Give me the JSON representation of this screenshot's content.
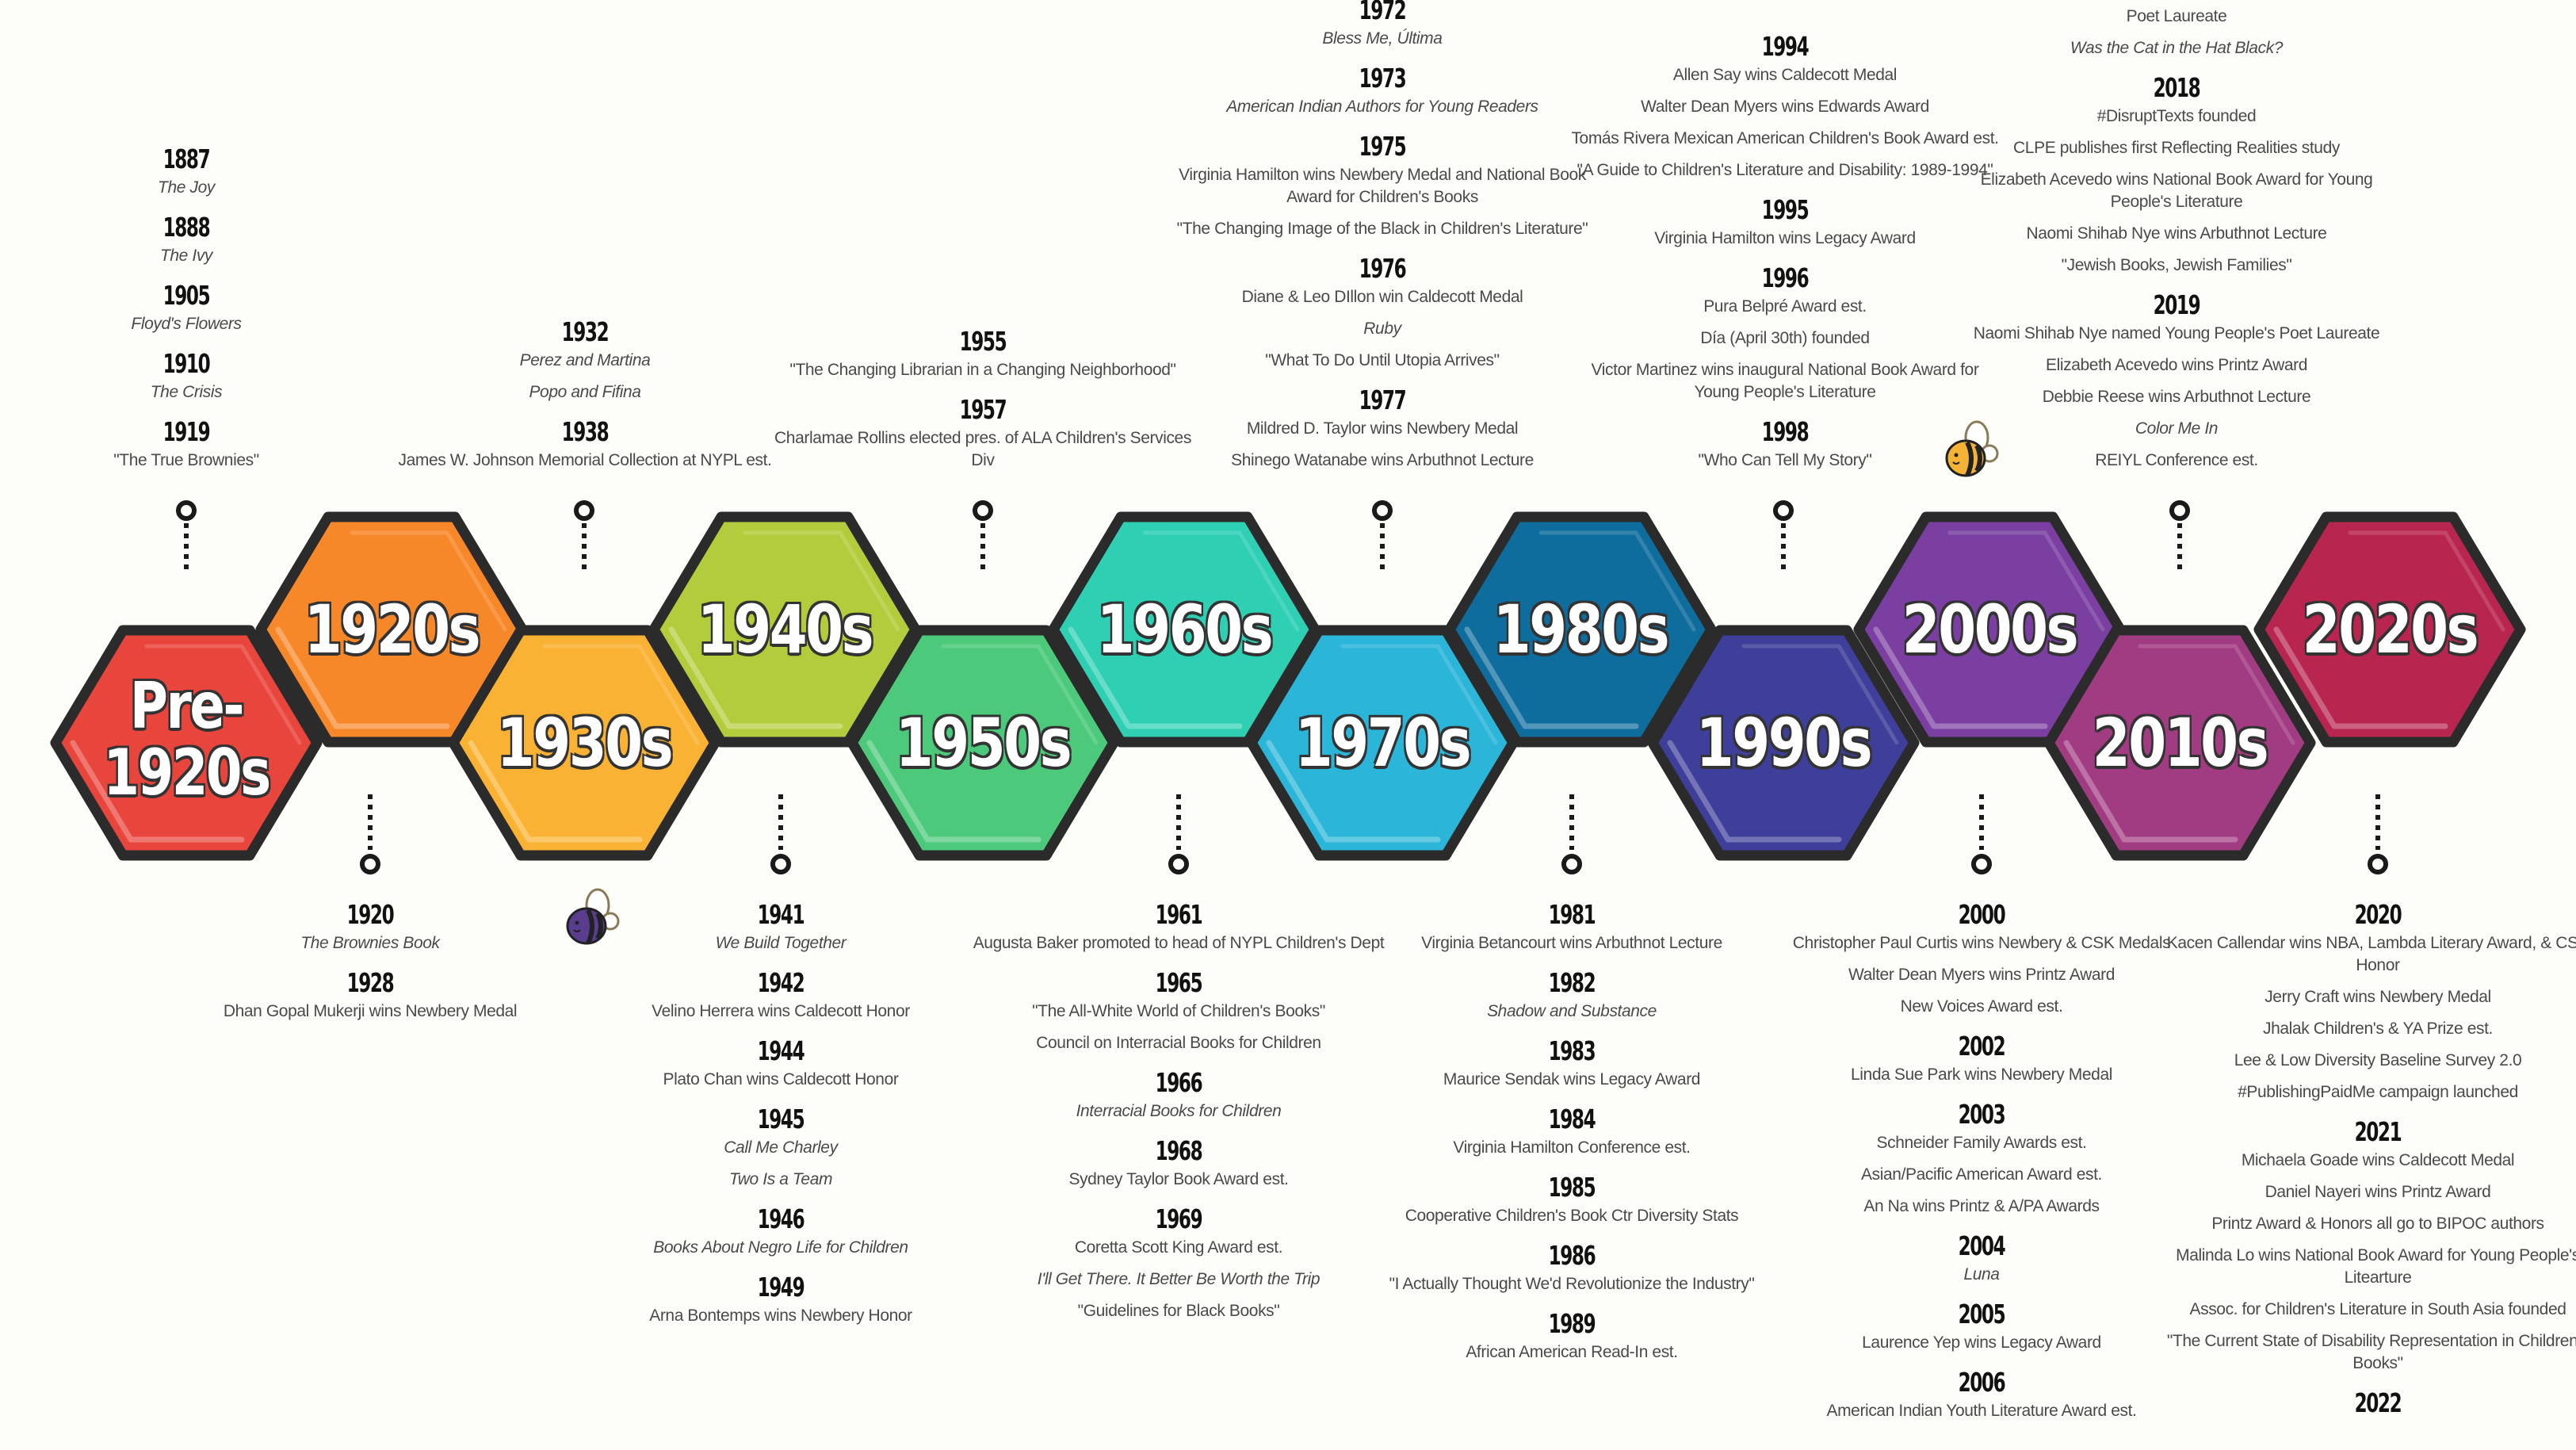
{
  "colors": {
    "background": "#fdfdfa",
    "outline": "#2b2b2b"
  },
  "decades": [
    {
      "label": "Pre-1920s",
      "color": "#e8453c",
      "row": "low"
    },
    {
      "label": "1920s",
      "color": "#f7882a",
      "row": "high"
    },
    {
      "label": "1930s",
      "color": "#f9b233",
      "row": "low"
    },
    {
      "label": "1940s",
      "color": "#b3cc3c",
      "row": "high"
    },
    {
      "label": "1950s",
      "color": "#4cc97a",
      "row": "low"
    },
    {
      "label": "1960s",
      "color": "#2ecfb3",
      "row": "high"
    },
    {
      "label": "1970s",
      "color": "#2bb5d8",
      "row": "low"
    },
    {
      "label": "1980s",
      "color": "#0f6d9e",
      "row": "high"
    },
    {
      "label": "1990s",
      "color": "#3e3f9a",
      "row": "low"
    },
    {
      "label": "2000s",
      "color": "#7a3fa0",
      "row": "high"
    },
    {
      "label": "2010s",
      "color": "#a23c82",
      "row": "low"
    },
    {
      "label": "2020s",
      "color": "#b8264f",
      "row": "high"
    }
  ],
  "top_columns": [
    {
      "decade": "Pre-1920s",
      "groups": [
        {
          "year": "1887",
          "items": [
            {
              "text": "The Joy",
              "italic": true
            }
          ]
        },
        {
          "year": "1888",
          "items": [
            {
              "text": "The Ivy",
              "italic": true
            }
          ]
        },
        {
          "year": "1905",
          "items": [
            {
              "text": "Floyd's Flowers",
              "italic": true
            }
          ]
        },
        {
          "year": "1910",
          "items": [
            {
              "text": "The Crisis",
              "italic": true
            }
          ]
        },
        {
          "year": "1919",
          "items": [
            {
              "text": "\"The True Brownies\"",
              "italic": false
            }
          ]
        }
      ]
    },
    {
      "decade": "1930s",
      "groups": [
        {
          "year": "1932",
          "items": [
            {
              "text": "Perez and Martina",
              "italic": true
            },
            {
              "text": "Popo and Fifina",
              "italic": true
            }
          ]
        },
        {
          "year": "1938",
          "items": [
            {
              "text": "James W. Johnson Memorial Collection at NYPL est.",
              "italic": false
            }
          ]
        }
      ]
    },
    {
      "decade": "1950s",
      "groups": [
        {
          "year": "1955",
          "items": [
            {
              "text": "\"The Changing Librarian in a Changing Neighborhood\"",
              "italic": false
            }
          ]
        },
        {
          "year": "1957",
          "items": [
            {
              "text": "Charlamae Rollins elected pres. of ALA Children's Services Div",
              "italic": false
            }
          ]
        }
      ]
    },
    {
      "decade": "1970s",
      "groups": [
        {
          "year": "1972",
          "items": [
            {
              "text": "Bless Me, Última",
              "italic": true
            }
          ]
        },
        {
          "year": "1973",
          "items": [
            {
              "text": "American Indian Authors for Young Readers",
              "italic": true
            }
          ]
        },
        {
          "year": "1975",
          "items": [
            {
              "text": "Virginia Hamilton wins Newbery Medal and National Book Award for Children's Books",
              "italic": false
            },
            {
              "text": "\"The Changing Image of the Black in Children's Literature\"",
              "italic": false
            }
          ]
        },
        {
          "year": "1976",
          "items": [
            {
              "text": "Diane & Leo DIllon win Caldecott Medal",
              "italic": false
            },
            {
              "text": "Ruby",
              "italic": true
            },
            {
              "text": "\"What To Do Until Utopia Arrives\"",
              "italic": false
            }
          ]
        },
        {
          "year": "1977",
          "items": [
            {
              "text": "Mildred D. Taylor wins Newbery Medal",
              "italic": false
            },
            {
              "text": "Shinego Watanabe wins Arbuthnot Lecture",
              "italic": false
            }
          ]
        }
      ]
    },
    {
      "decade": "1990s",
      "groups": [
        {
          "year": "1994",
          "items": [
            {
              "text": "Allen Say wins Caldecott Medal",
              "italic": false
            },
            {
              "text": "Walter Dean Myers wins Edwards Award",
              "italic": false
            },
            {
              "text": "Tomás Rivera Mexican American Children's Book Award est.",
              "italic": false
            },
            {
              "text": "\"A Guide to Children's Literature and Disability: 1989-1994\"",
              "italic": false
            }
          ]
        },
        {
          "year": "1995",
          "items": [
            {
              "text": "Virginia Hamilton wins Legacy Award",
              "italic": false
            }
          ]
        },
        {
          "year": "1996",
          "items": [
            {
              "text": "Pura Belpré Award est.",
              "italic": false
            },
            {
              "text": "Día (April 30th) founded",
              "italic": false
            },
            {
              "text": "Victor Martinez wins inaugural National Book Award for Young People's Literature",
              "italic": false
            }
          ]
        },
        {
          "year": "1998",
          "items": [
            {
              "text": "\"Who Can Tell My Story\"",
              "italic": false
            }
          ]
        }
      ]
    },
    {
      "decade": "2010s",
      "groups": [
        {
          "year": null,
          "items": [
            {
              "text": "Poet Laureate",
              "italic": false
            },
            {
              "text": "Was the Cat in the Hat Black?",
              "italic": true
            }
          ]
        },
        {
          "year": "2018",
          "items": [
            {
              "text": "#DisruptTexts founded",
              "italic": false
            },
            {
              "text": "CLPE publishes first Reflecting Realities study",
              "italic": false
            },
            {
              "text": "Elizabeth Acevedo wins National Book Award for Young People's Literature",
              "italic": false
            },
            {
              "text": "Naomi Shihab Nye wins Arbuthnot Lecture",
              "italic": false
            },
            {
              "text": "\"Jewish Books, Jewish Families\"",
              "italic": false
            }
          ]
        },
        {
          "year": "2019",
          "items": [
            {
              "text": "Naomi Shihab Nye named Young People's Poet Laureate",
              "italic": false
            },
            {
              "text": "Elizabeth Acevedo wins Printz Award",
              "italic": false
            },
            {
              "text": "Debbie Reese wins Arbuthnot Lecture",
              "italic": false
            },
            {
              "text": "Color Me In",
              "italic": true
            },
            {
              "text": "REIYL Conference est.",
              "italic": false
            }
          ]
        }
      ]
    }
  ],
  "bottom_columns": [
    {
      "decade": "1920s",
      "groups": [
        {
          "year": "1920",
          "items": [
            {
              "text": "The Brownies Book",
              "italic": true
            }
          ]
        },
        {
          "year": "1928",
          "items": [
            {
              "text": "Dhan Gopal Mukerji wins Newbery Medal",
              "italic": false
            }
          ]
        }
      ]
    },
    {
      "decade": "1940s",
      "groups": [
        {
          "year": "1941",
          "items": [
            {
              "text": "We Build Together",
              "italic": true
            }
          ]
        },
        {
          "year": "1942",
          "items": [
            {
              "text": "Velino Herrera wins Caldecott Honor",
              "italic": false
            }
          ]
        },
        {
          "year": "1944",
          "items": [
            {
              "text": "Plato Chan wins Caldecott Honor",
              "italic": false
            }
          ]
        },
        {
          "year": "1945",
          "items": [
            {
              "text": "Call Me Charley",
              "italic": true
            },
            {
              "text": "Two Is a Team",
              "italic": true
            }
          ]
        },
        {
          "year": "1946",
          "items": [
            {
              "text": "Books About Negro Life for Children",
              "italic": true
            }
          ]
        },
        {
          "year": "1949",
          "items": [
            {
              "text": "Arna Bontemps wins Newbery Honor",
              "italic": false
            }
          ]
        }
      ]
    },
    {
      "decade": "1960s",
      "groups": [
        {
          "year": "1961",
          "items": [
            {
              "text": "Augusta Baker promoted to head of NYPL Children's Dept",
              "italic": false
            }
          ]
        },
        {
          "year": "1965",
          "items": [
            {
              "text": "\"The All-White World of Children's Books\"",
              "italic": false
            },
            {
              "text": "Council on Interracial Books for Children",
              "italic": false
            }
          ]
        },
        {
          "year": "1966",
          "items": [
            {
              "text": "Interracial Books for Children",
              "italic": true
            }
          ]
        },
        {
          "year": "1968",
          "items": [
            {
              "text": "Sydney Taylor Book Award est.",
              "italic": false
            }
          ]
        },
        {
          "year": "1969",
          "items": [
            {
              "text": "Coretta Scott King Award est.",
              "italic": false
            },
            {
              "text": "I'll Get There. It Better Be Worth the Trip",
              "italic": true
            },
            {
              "text": "\"Guidelines for Black Books\"",
              "italic": false
            }
          ]
        }
      ]
    },
    {
      "decade": "1980s",
      "groups": [
        {
          "year": "1981",
          "items": [
            {
              "text": "Virginia Betancourt wins Arbuthnot Lecture",
              "italic": false
            }
          ]
        },
        {
          "year": "1982",
          "items": [
            {
              "text": "Shadow and Substance",
              "italic": true
            }
          ]
        },
        {
          "year": "1983",
          "items": [
            {
              "text": "Maurice Sendak wins Legacy Award",
              "italic": false
            }
          ]
        },
        {
          "year": "1984",
          "items": [
            {
              "text": "Virginia Hamilton Conference est.",
              "italic": false
            }
          ]
        },
        {
          "year": "1985",
          "items": [
            {
              "text": "Cooperative Children's Book Ctr Diversity Stats",
              "italic": false
            }
          ]
        },
        {
          "year": "1986",
          "items": [
            {
              "text": "\"I Actually Thought We'd Revolutionize the Industry\"",
              "italic": false
            }
          ]
        },
        {
          "year": "1989",
          "items": [
            {
              "text": "African American Read-In est.",
              "italic": false
            }
          ]
        }
      ]
    },
    {
      "decade": "2000s",
      "groups": [
        {
          "year": "2000",
          "items": [
            {
              "text": "Christopher Paul Curtis wins Newbery & CSK Medals",
              "italic": false
            },
            {
              "text": "Walter Dean Myers wins Printz Award",
              "italic": false
            },
            {
              "text": "New Voices Award est.",
              "italic": false
            }
          ]
        },
        {
          "year": "2002",
          "items": [
            {
              "text": "Linda Sue Park wins Newbery Medal",
              "italic": false
            }
          ]
        },
        {
          "year": "2003",
          "items": [
            {
              "text": "Schneider Family Awards est.",
              "italic": false
            },
            {
              "text": "Asian/Pacific American Award est.",
              "italic": false
            },
            {
              "text": "An Na wins Printz & A/PA Awards",
              "italic": false
            }
          ]
        },
        {
          "year": "2004",
          "items": [
            {
              "text": "Luna",
              "italic": true
            }
          ]
        },
        {
          "year": "2005",
          "items": [
            {
              "text": "Laurence Yep wins Legacy Award",
              "italic": false
            }
          ]
        },
        {
          "year": "2006",
          "items": [
            {
              "text": "American Indian Youth Literature Award est.",
              "italic": false
            }
          ]
        }
      ]
    },
    {
      "decade": "2020s",
      "groups": [
        {
          "year": "2020",
          "items": [
            {
              "text": "Kacen Callendar wins NBA, Lambda Literary Award, & CSK Honor",
              "italic": false
            },
            {
              "text": "Jerry Craft wins Newbery Medal",
              "italic": false
            },
            {
              "text": "Jhalak Children's & YA Prize est.",
              "italic": false
            },
            {
              "text": "Lee & Low Diversity Baseline Survey 2.0",
              "italic": false
            },
            {
              "text": "#PublishingPaidMe campaign launched",
              "italic": false
            }
          ]
        },
        {
          "year": "2021",
          "items": [
            {
              "text": "Michaela Goade wins Caldecott Medal",
              "italic": false
            },
            {
              "text": "Daniel Nayeri wins Printz Award",
              "italic": false
            },
            {
              "text": "Printz Award & Honors all go to BIPOC authors",
              "italic": false
            },
            {
              "text": "Malinda Lo wins National Book Award for Young People's Litearture",
              "italic": false
            },
            {
              "text": "Assoc. for Children's Literature in South Asia founded",
              "italic": false
            },
            {
              "text": "\"The Current State of Disability Representation in Children's Books\"",
              "italic": false
            }
          ]
        },
        {
          "year": "2022",
          "items": []
        }
      ]
    }
  ],
  "decorations": {
    "bee_yellow": "#f5b335",
    "bee_purple": "#5b3d8f"
  }
}
